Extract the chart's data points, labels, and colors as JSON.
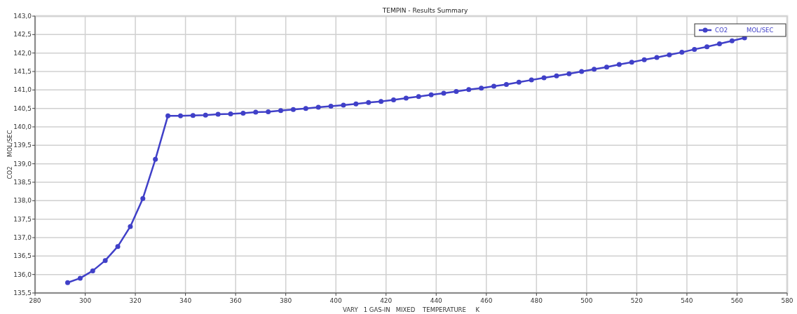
{
  "chart_data": {
    "type": "line",
    "title": "TEMPIN - Results Summary",
    "xlabel": "VARY   1 GAS-IN   MIXED    TEMPERATURE     K",
    "ylabel": "CO2     MOL/SEC",
    "x": [
      293,
      298,
      303,
      308,
      313,
      318,
      323,
      328,
      333,
      338,
      343,
      348,
      353,
      358,
      363,
      368,
      373,
      378,
      383,
      388,
      393,
      398,
      403,
      408,
      413,
      418,
      423,
      428,
      433,
      438,
      443,
      448,
      453,
      458,
      463,
      468,
      473,
      478,
      483,
      488,
      493,
      498,
      503,
      508,
      513,
      518,
      523,
      528,
      533,
      538,
      543,
      548,
      553,
      558,
      563
    ],
    "series": [
      {
        "name": "CO2          MOL/SEC",
        "color": "#4040c8",
        "values": [
          135.78,
          135.9,
          136.1,
          136.38,
          136.76,
          137.3,
          138.06,
          139.12,
          140.3,
          140.3,
          140.31,
          140.32,
          140.34,
          140.35,
          140.37,
          140.4,
          140.41,
          140.44,
          140.47,
          140.5,
          140.53,
          140.56,
          140.59,
          140.62,
          140.66,
          140.69,
          140.73,
          140.78,
          140.82,
          140.87,
          140.91,
          140.96,
          141.01,
          141.05,
          141.1,
          141.15,
          141.21,
          141.27,
          141.33,
          141.38,
          141.44,
          141.5,
          141.56,
          141.62,
          141.69,
          141.75,
          141.82,
          141.88,
          141.95,
          142.02,
          142.1,
          142.17,
          142.25,
          142.33,
          142.41
        ]
      }
    ],
    "xlim": [
      280,
      580
    ],
    "xticks": [
      280,
      300,
      320,
      340,
      360,
      380,
      400,
      420,
      440,
      460,
      480,
      500,
      520,
      540,
      560,
      580
    ],
    "ylim": [
      135.5,
      143
    ],
    "yticks": [
      {
        "value": 135.5,
        "label": "135,5"
      },
      {
        "value": 136,
        "label": "136,0"
      },
      {
        "value": 136.5,
        "label": "136,5"
      },
      {
        "value": 137,
        "label": "137,0"
      },
      {
        "value": 137.5,
        "label": "137,5"
      },
      {
        "value": 138,
        "label": "138,0"
      },
      {
        "value": 138.5,
        "label": "138,5"
      },
      {
        "value": 139,
        "label": "139,0"
      },
      {
        "value": 139.5,
        "label": "139,5"
      },
      {
        "value": 140,
        "label": "140,0"
      },
      {
        "value": 140.5,
        "label": "140,5"
      },
      {
        "value": 141,
        "label": "141,0"
      },
      {
        "value": 141.5,
        "label": "141,5"
      },
      {
        "value": 142,
        "label": "142,0"
      },
      {
        "value": 142.5,
        "label": "142,5"
      },
      {
        "value": 143,
        "label": "143,0"
      }
    ],
    "grid": true,
    "legend": "top right",
    "marker": "circle",
    "line_style": "solid"
  }
}
